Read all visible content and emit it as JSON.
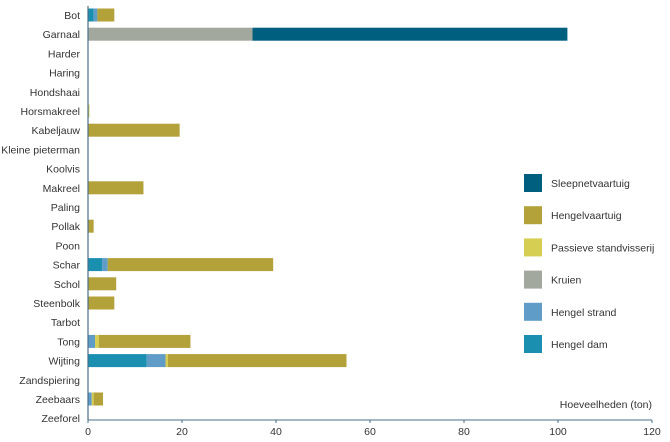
{
  "chart_data": {
    "type": "bar",
    "orientation": "horizontal",
    "stacked": true,
    "categories": [
      "Bot",
      "Garnaal",
      "Harder",
      "Haring",
      "Hondshaai",
      "Horsmakreel",
      "Kabeljauw",
      "Kleine pieterman",
      "Koolvis",
      "Makreel",
      "Paling",
      "Pollak",
      "Poon",
      "Schar",
      "Schol",
      "Steenbolk",
      "Tarbot",
      "Tong",
      "Wijting",
      "Zandspiering",
      "Zeebaars",
      "Zeeforel"
    ],
    "series": [
      {
        "name": "Hengel dam",
        "color": "#1a8fb0",
        "values": [
          1.2,
          0,
          0,
          0,
          0,
          0,
          0,
          0,
          0,
          0,
          0,
          0,
          0,
          3.0,
          0,
          0,
          0,
          0,
          12.5,
          0,
          0,
          0
        ]
      },
      {
        "name": "Hengel strand",
        "color": "#5f9cc7",
        "values": [
          0.8,
          0,
          0,
          0,
          0,
          0,
          0,
          0,
          0,
          0,
          0,
          0,
          0,
          1.2,
          0,
          0,
          0,
          1.5,
          4.0,
          0,
          0.8,
          0
        ]
      },
      {
        "name": "Kruien",
        "color": "#a3a89e",
        "values": [
          0,
          35.0,
          0,
          0,
          0,
          0,
          0,
          0,
          0,
          0,
          0,
          0,
          0,
          0,
          0,
          0,
          0,
          0,
          0,
          0,
          0,
          0
        ]
      },
      {
        "name": "Passieve standvisserij",
        "color": "#d6ce52",
        "values": [
          0,
          0,
          0,
          0,
          0,
          0.3,
          0,
          0,
          0,
          0,
          0,
          0,
          0,
          0,
          0,
          0,
          0,
          0.8,
          0.5,
          0,
          0.4,
          0
        ]
      },
      {
        "name": "Hengelvaartuig",
        "color": "#b3a13a",
        "values": [
          3.6,
          0,
          0,
          0,
          0,
          0,
          19.5,
          0,
          0,
          11.8,
          0,
          1.2,
          0,
          35.2,
          6.0,
          5.6,
          0,
          19.5,
          38.0,
          0,
          2.0,
          0
        ]
      },
      {
        "name": "Sleepnetvaartuig",
        "color": "#005f7f",
        "values": [
          0,
          67.0,
          0,
          0,
          0,
          0,
          0,
          0,
          0,
          0,
          0,
          0,
          0,
          0,
          0,
          0,
          0,
          0,
          0,
          0,
          0,
          0
        ]
      }
    ],
    "legend_order": [
      "Sleepnetvaartuig",
      "Hengelvaartuig",
      "Passieve standvisserij",
      "Kruien",
      "Hengel strand",
      "Hengel dam"
    ],
    "legend_position": "right",
    "xlabel": "Hoeveelheden (ton)",
    "xlim": [
      0,
      120
    ],
    "xticks": [
      0,
      20,
      40,
      60,
      80,
      100,
      120
    ],
    "grid": false
  }
}
